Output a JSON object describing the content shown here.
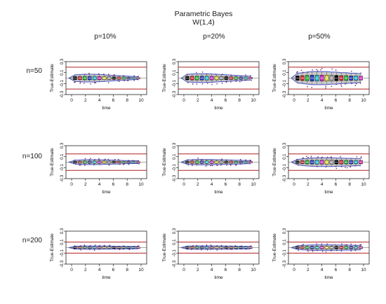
{
  "figure": {
    "title": "Parametric Bayes",
    "subtitle": "W(1,4)",
    "columns": [
      "p=10%",
      "p=20%",
      "p=50%"
    ],
    "rows": [
      "n=50",
      "n=100",
      "n=200"
    ]
  },
  "colors": {
    "band": "#c8c8c8",
    "envelope": "#4a56c8",
    "reference_line": "#b02020",
    "outlier": "#6a2a6a",
    "box_palette": [
      "#000000",
      "#e0303a",
      "#2fbf3a",
      "#3040d0",
      "#20c8d8",
      "#e030d0",
      "#e8e040",
      "#a8a8a8",
      "#000000",
      "#e0303a",
      "#2fbf3a",
      "#3040d0",
      "#20c8d8",
      "#e030d0",
      "#e8e040"
    ]
  },
  "chart_data": [
    {
      "type": "box",
      "panel": "n=50, p=10%",
      "xlabel": "time",
      "ylabel": "True-Estimate",
      "ylim": [
        -0.3,
        0.3
      ],
      "y_ticks": [
        0.3,
        0.1,
        -0.1,
        -0.3
      ],
      "x_ticks": [
        0,
        2,
        4,
        6,
        8,
        10
      ],
      "reference_lines": [
        0.2,
        -0.2
      ],
      "x": [
        0.5,
        1.2,
        1.9,
        2.6,
        3.3,
        4,
        4.7,
        5.4,
        6.1,
        6.8,
        7.5,
        8.2,
        8.9,
        9.6
      ],
      "spread": [
        0.06,
        0.065,
        0.07,
        0.07,
        0.07,
        0.065,
        0.06,
        0.055,
        0.05,
        0.045,
        0.04,
        0.035,
        0.03,
        0.025
      ]
    },
    {
      "type": "box",
      "panel": "n=50, p=20%",
      "xlabel": "time",
      "ylabel": "True-Estimate",
      "ylim": [
        -0.3,
        0.3
      ],
      "y_ticks": [
        0.3,
        0.1,
        -0.1,
        -0.3
      ],
      "x_ticks": [
        0,
        2,
        4,
        6,
        8,
        10
      ],
      "reference_lines": [
        0.2,
        -0.2
      ],
      "x": [
        0.5,
        1.2,
        1.9,
        2.6,
        3.3,
        4,
        4.7,
        5.4,
        6.1,
        6.8,
        7.5,
        8.2,
        8.9,
        9.6
      ],
      "spread": [
        0.07,
        0.075,
        0.08,
        0.08,
        0.08,
        0.075,
        0.07,
        0.065,
        0.06,
        0.055,
        0.05,
        0.045,
        0.04,
        0.035
      ]
    },
    {
      "type": "box",
      "panel": "n=50, p=50%",
      "xlabel": "time",
      "ylabel": "True-Estimate",
      "ylim": [
        -0.3,
        0.3
      ],
      "y_ticks": [
        0.3,
        0.1,
        -0.1,
        -0.3
      ],
      "x_ticks": [
        0,
        2,
        4,
        6,
        8,
        10
      ],
      "reference_lines": [
        0.2,
        -0.2
      ],
      "x": [
        0.5,
        1.2,
        1.9,
        2.6,
        3.3,
        4,
        4.7,
        5.4,
        6.1,
        6.8,
        7.5,
        8.2,
        8.9,
        9.6
      ],
      "spread": [
        0.09,
        0.1,
        0.11,
        0.12,
        0.12,
        0.12,
        0.12,
        0.11,
        0.11,
        0.1,
        0.1,
        0.09,
        0.09,
        0.08
      ]
    },
    {
      "type": "box",
      "panel": "n=100, p=10%",
      "xlabel": "time",
      "ylabel": "True-Estimate",
      "ylim": [
        -0.3,
        0.3
      ],
      "y_ticks": [
        0.3,
        0.1,
        -0.1,
        -0.3
      ],
      "x_ticks": [
        0,
        2,
        4,
        6,
        8,
        10
      ],
      "reference_lines": [
        0.15,
        -0.15
      ],
      "x": [
        0.5,
        1.2,
        1.9,
        2.6,
        3.3,
        4,
        4.7,
        5.4,
        6.1,
        6.8,
        7.5,
        8.2,
        8.9,
        9.6
      ],
      "spread": [
        0.035,
        0.04,
        0.045,
        0.045,
        0.045,
        0.045,
        0.04,
        0.04,
        0.035,
        0.035,
        0.03,
        0.03,
        0.025,
        0.025
      ]
    },
    {
      "type": "box",
      "panel": "n=100, p=20%",
      "xlabel": "time",
      "ylabel": "True-Estimate",
      "ylim": [
        -0.3,
        0.3
      ],
      "y_ticks": [
        0.3,
        0.1,
        -0.1,
        -0.3
      ],
      "x_ticks": [
        0,
        2,
        4,
        6,
        8,
        10
      ],
      "reference_lines": [
        0.15,
        -0.15
      ],
      "x": [
        0.5,
        1.2,
        1.9,
        2.6,
        3.3,
        4,
        4.7,
        5.4,
        6.1,
        6.8,
        7.5,
        8.2,
        8.9,
        9.6
      ],
      "spread": [
        0.04,
        0.045,
        0.05,
        0.05,
        0.05,
        0.05,
        0.045,
        0.045,
        0.04,
        0.04,
        0.035,
        0.035,
        0.03,
        0.03
      ]
    },
    {
      "type": "box",
      "panel": "n=100, p=50%",
      "xlabel": "time",
      "ylabel": "True-Estimate",
      "ylim": [
        -0.3,
        0.3
      ],
      "y_ticks": [
        0.3,
        0.1,
        -0.1,
        -0.3
      ],
      "x_ticks": [
        0,
        2,
        4,
        6,
        8,
        10
      ],
      "reference_lines": [
        0.15,
        -0.15
      ],
      "x": [
        0.5,
        1.2,
        1.9,
        2.6,
        3.3,
        4,
        4.7,
        5.4,
        6.1,
        6.8,
        7.5,
        8.2,
        8.9,
        9.6
      ],
      "spread": [
        0.05,
        0.06,
        0.07,
        0.075,
        0.08,
        0.08,
        0.08,
        0.08,
        0.075,
        0.075,
        0.07,
        0.07,
        0.065,
        0.065
      ]
    },
    {
      "type": "box",
      "panel": "n=200, p=10%",
      "xlabel": "time",
      "ylabel": "True-Estimate",
      "ylim": [
        -0.3,
        0.3
      ],
      "y_ticks": [
        0.3,
        0.1,
        -0.1,
        -0.3
      ],
      "x_ticks": [
        0,
        2,
        4,
        6,
        8,
        10
      ],
      "reference_lines": [
        0.1,
        -0.1
      ],
      "x": [
        0.5,
        1.2,
        1.9,
        2.6,
        3.3,
        4,
        4.7,
        5.4,
        6.1,
        6.8,
        7.5,
        8.2,
        8.9,
        9.6
      ],
      "spread": [
        0.025,
        0.028,
        0.03,
        0.03,
        0.03,
        0.03,
        0.028,
        0.028,
        0.026,
        0.026,
        0.024,
        0.024,
        0.022,
        0.022
      ]
    },
    {
      "type": "box",
      "panel": "n=200, p=20%",
      "xlabel": "time",
      "ylabel": "True-Estimate",
      "ylim": [
        -0.3,
        0.3
      ],
      "y_ticks": [
        0.3,
        0.1,
        -0.1,
        -0.3
      ],
      "x_ticks": [
        0,
        2,
        4,
        6,
        8,
        10
      ],
      "reference_lines": [
        0.1,
        -0.1
      ],
      "x": [
        0.5,
        1.2,
        1.9,
        2.6,
        3.3,
        4,
        4.7,
        5.4,
        6.1,
        6.8,
        7.5,
        8.2,
        8.9,
        9.6
      ],
      "spread": [
        0.028,
        0.03,
        0.032,
        0.032,
        0.032,
        0.032,
        0.03,
        0.03,
        0.028,
        0.028,
        0.026,
        0.026,
        0.024,
        0.024
      ]
    },
    {
      "type": "box",
      "panel": "n=200, p=50%",
      "xlabel": "time",
      "ylabel": "True-Estimate",
      "ylim": [
        -0.3,
        0.3
      ],
      "y_ticks": [
        0.3,
        0.1,
        -0.1,
        -0.3
      ],
      "x_ticks": [
        0,
        2,
        4,
        6,
        8,
        10
      ],
      "reference_lines": [
        0.1,
        -0.1
      ],
      "x": [
        0.5,
        1.2,
        1.9,
        2.6,
        3.3,
        4,
        4.7,
        5.4,
        6.1,
        6.8,
        7.5,
        8.2,
        8.9,
        9.6
      ],
      "spread": [
        0.035,
        0.04,
        0.045,
        0.05,
        0.05,
        0.05,
        0.05,
        0.05,
        0.048,
        0.048,
        0.045,
        0.045,
        0.042,
        0.042
      ]
    }
  ]
}
